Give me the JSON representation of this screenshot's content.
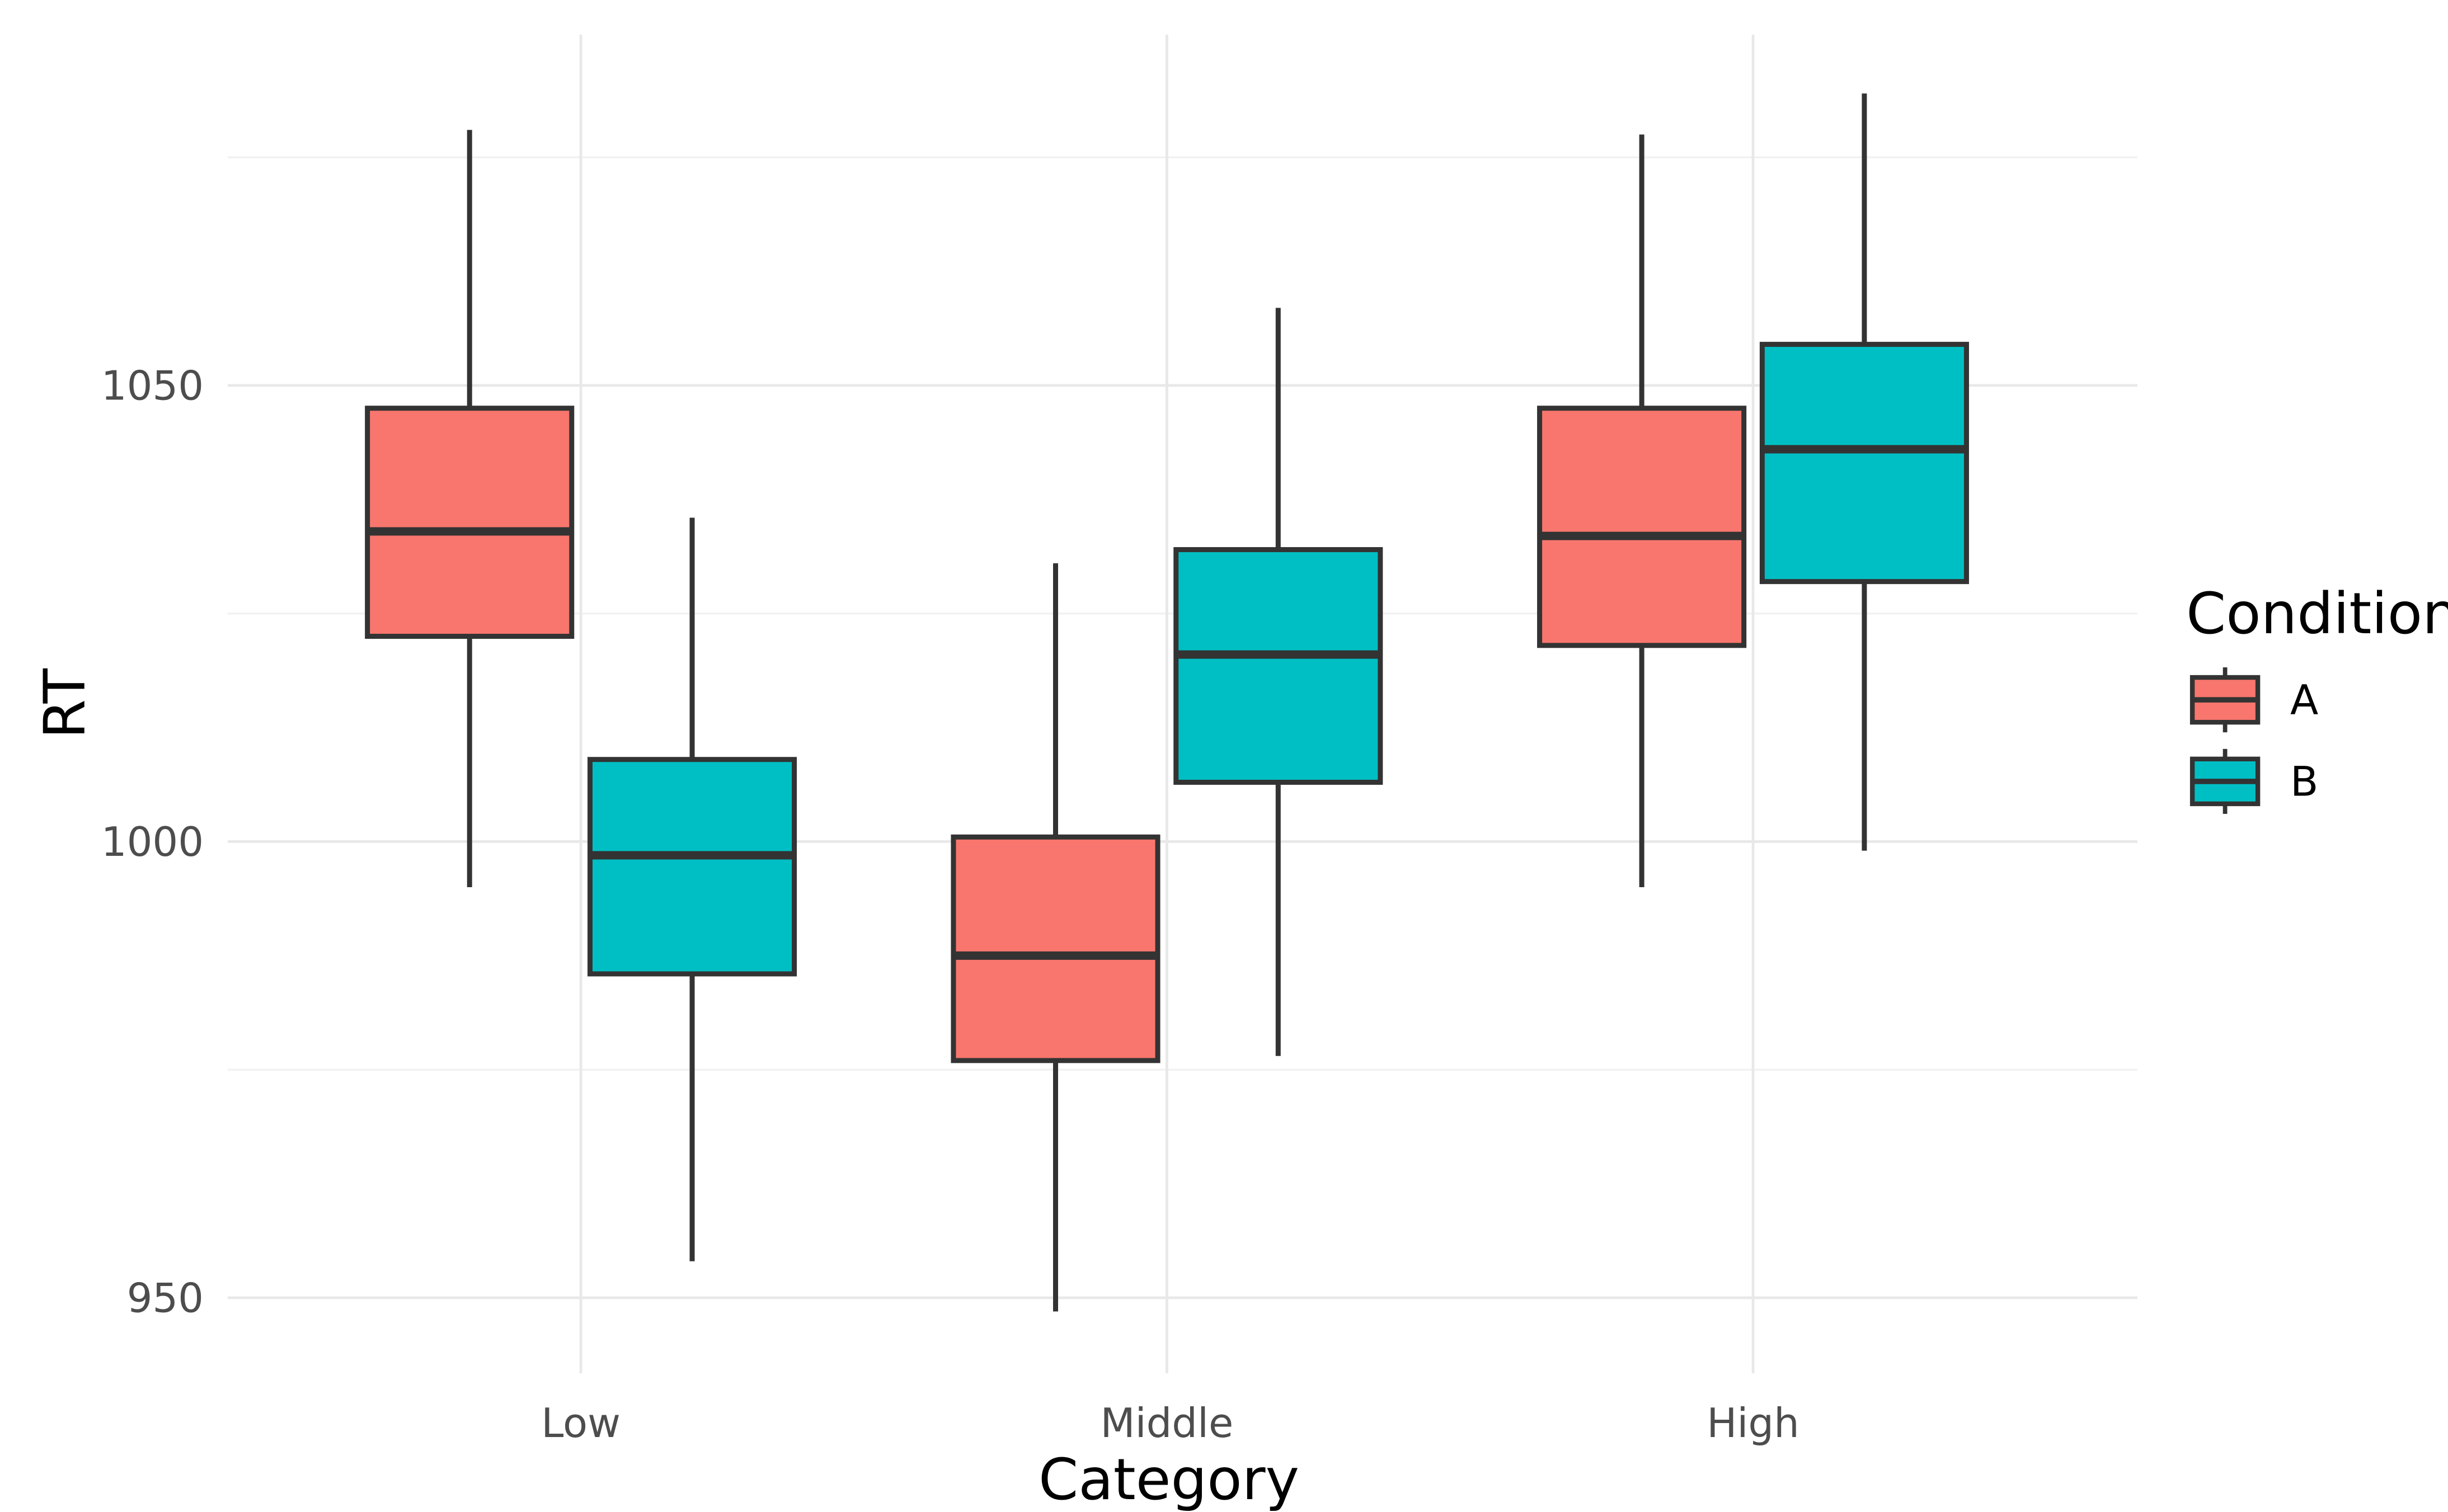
{
  "chart_data": {
    "type": "boxplot",
    "title": "",
    "xlabel": "Category",
    "ylabel": "RT",
    "categories": [
      "Low",
      "Middle",
      "High"
    ],
    "y_axis": {
      "ticks": [
        950,
        1000,
        1050
      ],
      "tick_labels": [
        "950",
        "1000",
        "1050"
      ],
      "minor_gridlines": [
        975,
        1025,
        1075
      ],
      "range": [
        941.5,
        1088.5
      ],
      "grid": true
    },
    "legend": {
      "title": "Condition",
      "position": "right",
      "entries": [
        {
          "label": "A",
          "color": "#F8766D"
        },
        {
          "label": "B",
          "color": "#00BFC4"
        }
      ]
    },
    "series": [
      {
        "name": "A",
        "color": "#F8766D",
        "boxes": [
          {
            "category": "Low",
            "whisker_low": 995,
            "q1": 1022.5,
            "median": 1034,
            "q3": 1047.5,
            "whisker_high": 1078
          },
          {
            "category": "Middle",
            "whisker_low": 948.5,
            "q1": 976,
            "median": 987.5,
            "q3": 1000.5,
            "whisker_high": 1030.5
          },
          {
            "category": "High",
            "whisker_low": 995,
            "q1": 1021.5,
            "median": 1033.5,
            "q3": 1047.5,
            "whisker_high": 1077.5
          }
        ]
      },
      {
        "name": "B",
        "color": "#00BFC4",
        "boxes": [
          {
            "category": "Low",
            "whisker_low": 954,
            "q1": 985.5,
            "median": 998.5,
            "q3": 1009,
            "whisker_high": 1035.5
          },
          {
            "category": "Middle",
            "whisker_low": 976.5,
            "q1": 1006.5,
            "median": 1020.5,
            "q3": 1032,
            "whisker_high": 1058.5
          },
          {
            "category": "High",
            "whisker_low": 999,
            "q1": 1028.5,
            "median": 1043,
            "q3": 1054.5,
            "whisker_high": 1082
          }
        ]
      }
    ],
    "style": {
      "box_border": "#333333",
      "grid_major": "#E8E8E8",
      "grid_minor": "#F1F1F1",
      "tick_text": "#4D4D4D",
      "title_text": "#000000",
      "background": "#FFFFFF"
    }
  }
}
